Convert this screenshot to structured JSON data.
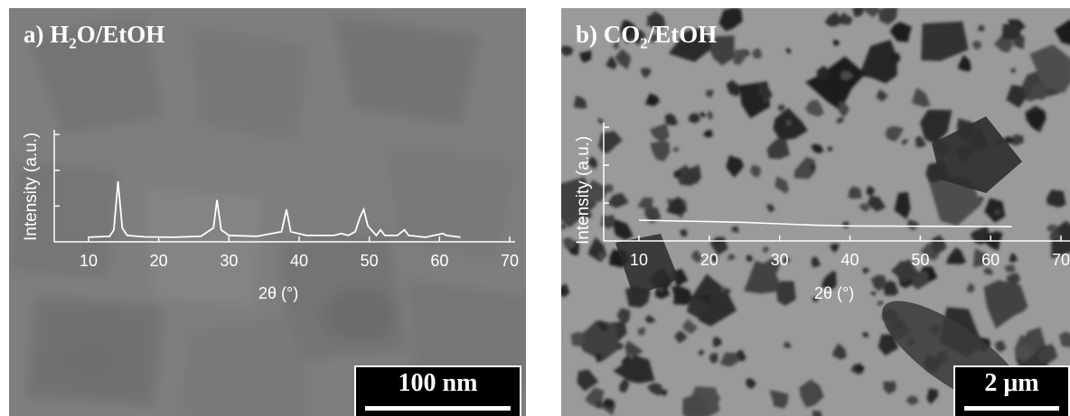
{
  "figure": {
    "panel_a": {
      "label_prefix": "a) H",
      "label_sub": "2",
      "label_suffix": "O/EtOH",
      "scale_bar": "100 nm",
      "inset": {
        "ylabel": "Intensity (a.u.)",
        "xlabel": "2θ (°)",
        "x_ticks": [
          "10",
          "20",
          "30",
          "40",
          "50",
          "60",
          "70"
        ],
        "x_range": [
          10,
          70
        ],
        "trace": [
          [
            10,
            1
          ],
          [
            13,
            1.5
          ],
          [
            13.6,
            5
          ],
          [
            14.2,
            31
          ],
          [
            14.8,
            6
          ],
          [
            15.5,
            2
          ],
          [
            18,
            1.2
          ],
          [
            22,
            1
          ],
          [
            26,
            1.5
          ],
          [
            27.8,
            6
          ],
          [
            28.3,
            21
          ],
          [
            28.9,
            5
          ],
          [
            30,
            2
          ],
          [
            34,
            1.5
          ],
          [
            37.5,
            4
          ],
          [
            38.2,
            16
          ],
          [
            38.8,
            4
          ],
          [
            41,
            2
          ],
          [
            45,
            2
          ],
          [
            46,
            3
          ],
          [
            47,
            2
          ],
          [
            48,
            4
          ],
          [
            48.7,
            12
          ],
          [
            49.2,
            16
          ],
          [
            49.8,
            7
          ],
          [
            51,
            2
          ],
          [
            51.6,
            5
          ],
          [
            52.2,
            2
          ],
          [
            54,
            2
          ],
          [
            55,
            5
          ],
          [
            55.6,
            2
          ],
          [
            58,
            1
          ],
          [
            60.5,
            3
          ],
          [
            61,
            2
          ],
          [
            63,
            1
          ]
        ]
      }
    },
    "panel_b": {
      "label_prefix": "b) CO",
      "label_sub": "2",
      "label_suffix": "/EtOH",
      "scale_bar": "2 μm",
      "inset": {
        "ylabel": "Intensity (a.u.)",
        "xlabel": "2θ (°)",
        "x_ticks": [
          "10",
          "20",
          "30",
          "40",
          "50",
          "60",
          "70"
        ],
        "x_range": [
          10,
          70
        ],
        "trace": [
          [
            10,
            5
          ],
          [
            15,
            4.5
          ],
          [
            20,
            4
          ],
          [
            25,
            3.5
          ],
          [
            30,
            2.5
          ],
          [
            35,
            1.5
          ],
          [
            40,
            1
          ],
          [
            50,
            0.8
          ],
          [
            60,
            0.6
          ],
          [
            63,
            0.5
          ]
        ]
      }
    }
  }
}
